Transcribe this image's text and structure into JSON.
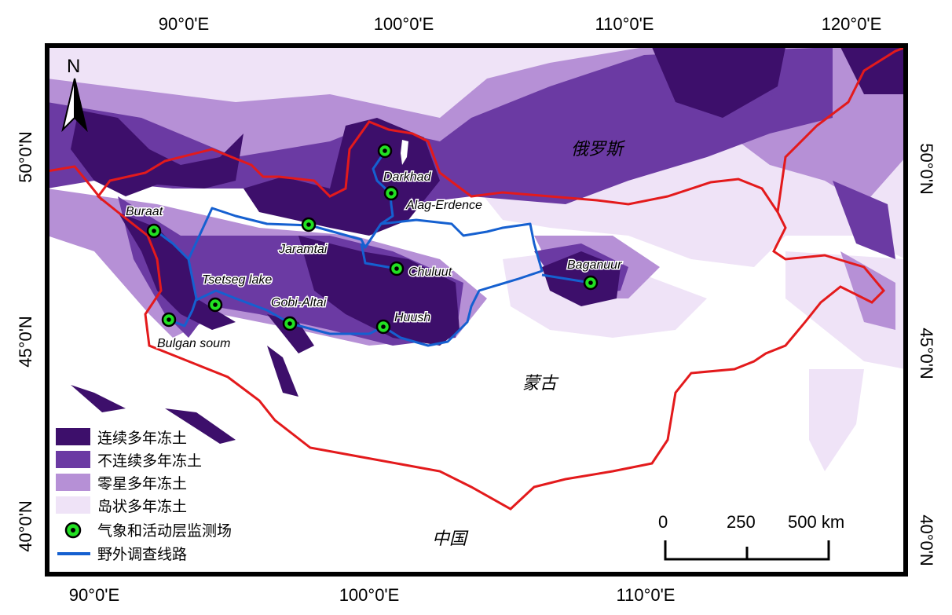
{
  "axes": {
    "top": [
      "90°0'E",
      "100°0'E",
      "110°0'E",
      "120°0'E"
    ],
    "bottom": [
      "90°0'E",
      "100°0'E",
      "110°0'E"
    ],
    "left": [
      "50°0'N",
      "45°0'N",
      "40°0'N"
    ],
    "right": [
      "50°0'N",
      "45°0'N",
      "40°0'N"
    ]
  },
  "north_label": "N",
  "countries": {
    "russia": "俄罗斯",
    "mongolia": "蒙古",
    "china": "中国"
  },
  "stations": [
    {
      "name": "Darkhad"
    },
    {
      "name": "Alag-Erdence"
    },
    {
      "name": "Buraat"
    },
    {
      "name": "Jaramtai"
    },
    {
      "name": "Chuluut"
    },
    {
      "name": "Baganuur"
    },
    {
      "name": "Tsetseg lake"
    },
    {
      "name": "Gobi-Altai"
    },
    {
      "name": "Huush"
    },
    {
      "name": "Bulgan soum"
    }
  ],
  "legend": {
    "continuous": "连续多年冻土",
    "discontinuous": "不连续多年冻土",
    "sporadic": "零星多年冻土",
    "isolated": "岛状多年冻土",
    "station": "气象和活动层监测场",
    "route": "野外调查线路"
  },
  "colors": {
    "continuous": "#3d0f6b",
    "discontinuous": "#6b3aa3",
    "sporadic": "#b690d6",
    "isolated": "#efe3f7",
    "border": "#e31a1c",
    "route": "#1560d0",
    "station": "#22e022"
  },
  "scale": {
    "labels": [
      "0",
      "250",
      "500 km"
    ]
  }
}
